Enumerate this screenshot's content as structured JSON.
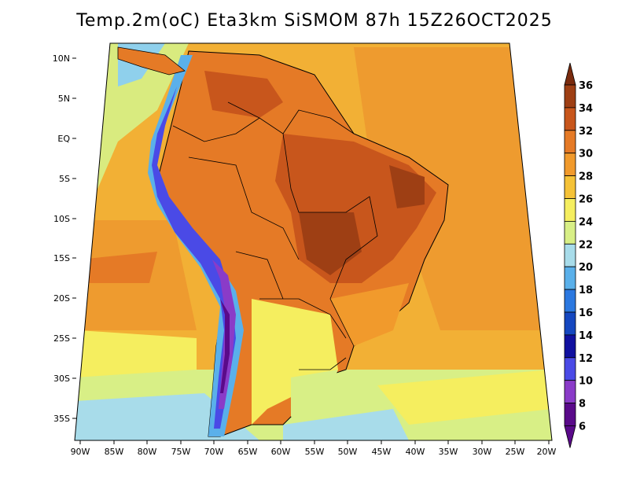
{
  "title": "Temp.2m(oC) Eta3km SiSMOM 87h 15Z26OCT2025",
  "map": {
    "lat_labels": [
      "10N",
      "5N",
      "EQ",
      "5S",
      "10S",
      "15S",
      "20S",
      "25S",
      "30S",
      "35S"
    ],
    "lon_labels": [
      "90W",
      "85W",
      "80W",
      "75W",
      "70W",
      "65W",
      "60W",
      "55W",
      "50W",
      "45W",
      "40W",
      "35W",
      "30W",
      "25W",
      "20W"
    ],
    "extent": {
      "lon": [
        -90,
        -20
      ],
      "lat": [
        -38,
        11
      ]
    },
    "ocean_color": "#f2b035",
    "land_outline_color": "#000000"
  },
  "colorbar": {
    "labels": [
      "36",
      "34",
      "32",
      "30",
      "28",
      "26",
      "24",
      "22",
      "20",
      "18",
      "16",
      "14",
      "12",
      "10",
      "8",
      "6"
    ],
    "colors": [
      "#7a2b0e",
      "#9e3f14",
      "#c8561c",
      "#e57a26",
      "#f19a2c",
      "#f5c237",
      "#f5ee5f",
      "#d8ef86",
      "#a8dcea",
      "#5ab0ea",
      "#2b78e0",
      "#1547c0",
      "#1010a0",
      "#4a4ae6",
      "#8a3bc8",
      "#5a0a8a"
    ]
  }
}
